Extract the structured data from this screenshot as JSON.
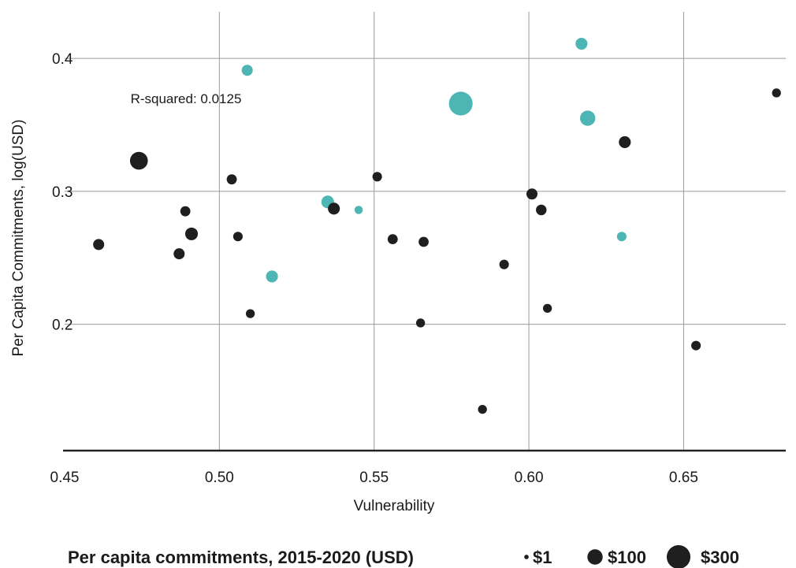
{
  "chart_data": {
    "type": "scatter",
    "xlabel": "Vulnerability",
    "ylabel": "Per Capita Commitments, log(USD)",
    "xlim": [
      0.45,
      0.683
    ],
    "ylim": [
      0.105,
      0.435
    ],
    "x_ticks": [
      0.45,
      0.5,
      0.55,
      0.6,
      0.65
    ],
    "x_tick_labels": [
      "0.45",
      "0.50",
      "0.55",
      "0.60",
      "0.65"
    ],
    "y_ticks": [
      0.2,
      0.3,
      0.4
    ],
    "y_tick_labels": [
      "0.2",
      "0.3",
      "0.4"
    ],
    "grid": true,
    "annotation": "R-squared: 0.0125",
    "colors": {
      "black": "#1f1f1f",
      "teal": "#4db6b4",
      "grid": "#9a9a9a",
      "axis": "#222222"
    },
    "points": [
      {
        "x": 0.461,
        "y": 0.26,
        "usd": 40,
        "color": "black"
      },
      {
        "x": 0.474,
        "y": 0.323,
        "usd": 150,
        "color": "black"
      },
      {
        "x": 0.487,
        "y": 0.253,
        "usd": 40,
        "color": "black"
      },
      {
        "x": 0.489,
        "y": 0.285,
        "usd": 30,
        "color": "black"
      },
      {
        "x": 0.491,
        "y": 0.268,
        "usd": 60,
        "color": "black"
      },
      {
        "x": 0.504,
        "y": 0.309,
        "usd": 30,
        "color": "black"
      },
      {
        "x": 0.506,
        "y": 0.266,
        "usd": 25,
        "color": "black"
      },
      {
        "x": 0.509,
        "y": 0.391,
        "usd": 40,
        "color": "teal"
      },
      {
        "x": 0.51,
        "y": 0.208,
        "usd": 20,
        "color": "black"
      },
      {
        "x": 0.517,
        "y": 0.236,
        "usd": 50,
        "color": "teal"
      },
      {
        "x": 0.535,
        "y": 0.292,
        "usd": 60,
        "color": "teal"
      },
      {
        "x": 0.537,
        "y": 0.287,
        "usd": 50,
        "color": "black"
      },
      {
        "x": 0.545,
        "y": 0.286,
        "usd": 15,
        "color": "teal"
      },
      {
        "x": 0.551,
        "y": 0.311,
        "usd": 25,
        "color": "black"
      },
      {
        "x": 0.556,
        "y": 0.264,
        "usd": 30,
        "color": "black"
      },
      {
        "x": 0.565,
        "y": 0.201,
        "usd": 20,
        "color": "black"
      },
      {
        "x": 0.566,
        "y": 0.262,
        "usd": 30,
        "color": "black"
      },
      {
        "x": 0.578,
        "y": 0.366,
        "usd": 300,
        "color": "teal"
      },
      {
        "x": 0.585,
        "y": 0.136,
        "usd": 20,
        "color": "black"
      },
      {
        "x": 0.592,
        "y": 0.245,
        "usd": 25,
        "color": "black"
      },
      {
        "x": 0.601,
        "y": 0.298,
        "usd": 40,
        "color": "black"
      },
      {
        "x": 0.604,
        "y": 0.286,
        "usd": 35,
        "color": "black"
      },
      {
        "x": 0.606,
        "y": 0.212,
        "usd": 20,
        "color": "black"
      },
      {
        "x": 0.617,
        "y": 0.411,
        "usd": 50,
        "color": "teal"
      },
      {
        "x": 0.619,
        "y": 0.355,
        "usd": 100,
        "color": "teal"
      },
      {
        "x": 0.63,
        "y": 0.266,
        "usd": 25,
        "color": "teal"
      },
      {
        "x": 0.631,
        "y": 0.337,
        "usd": 50,
        "color": "black"
      },
      {
        "x": 0.654,
        "y": 0.184,
        "usd": 25,
        "color": "black"
      },
      {
        "x": 0.68,
        "y": 0.374,
        "usd": 20,
        "color": "black"
      }
    ],
    "legend": {
      "title": "Per capita commitments, 2015-2020 (USD)",
      "items": [
        {
          "label": "$1",
          "usd": 1
        },
        {
          "label": "$100",
          "usd": 100
        },
        {
          "label": "$300",
          "usd": 300
        }
      ]
    }
  }
}
